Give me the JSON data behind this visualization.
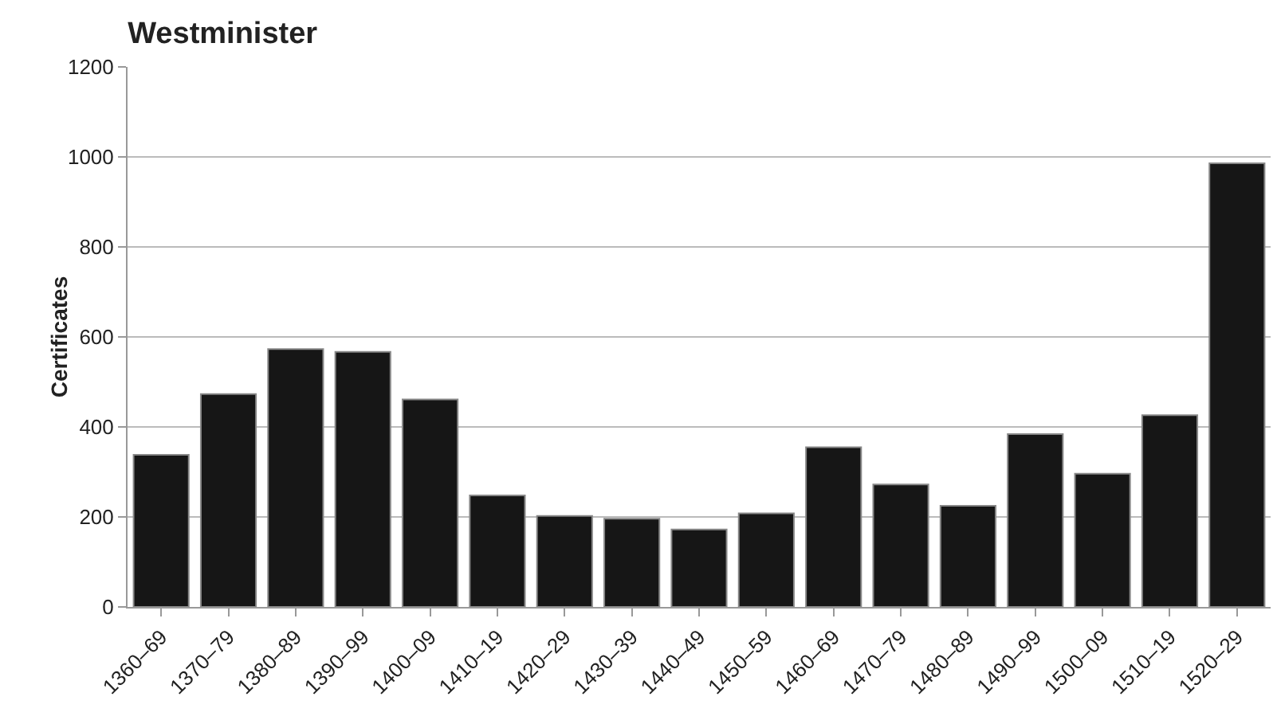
{
  "chart_data": {
    "type": "bar",
    "title": "Westminister",
    "ylabel": "Certificates",
    "categories": [
      "1360–69",
      "1370–79",
      "1380–89",
      "1390–99",
      "1400–09",
      "1410–19",
      "1420–29",
      "1430–39",
      "1440–49",
      "1450–59",
      "1460–69",
      "1470–79",
      "1480–89",
      "1490–99",
      "1500–09",
      "1510–19",
      "1520–29"
    ],
    "values": [
      338,
      473,
      573,
      567,
      461,
      248,
      202,
      196,
      172,
      208,
      355,
      272,
      225,
      384,
      296,
      426,
      986
    ],
    "color": "#161616",
    "ylim": [
      0,
      1200
    ],
    "yticks": [
      0,
      200,
      400,
      600,
      800,
      1000,
      1200
    ],
    "grid": "y",
    "legend": false
  }
}
